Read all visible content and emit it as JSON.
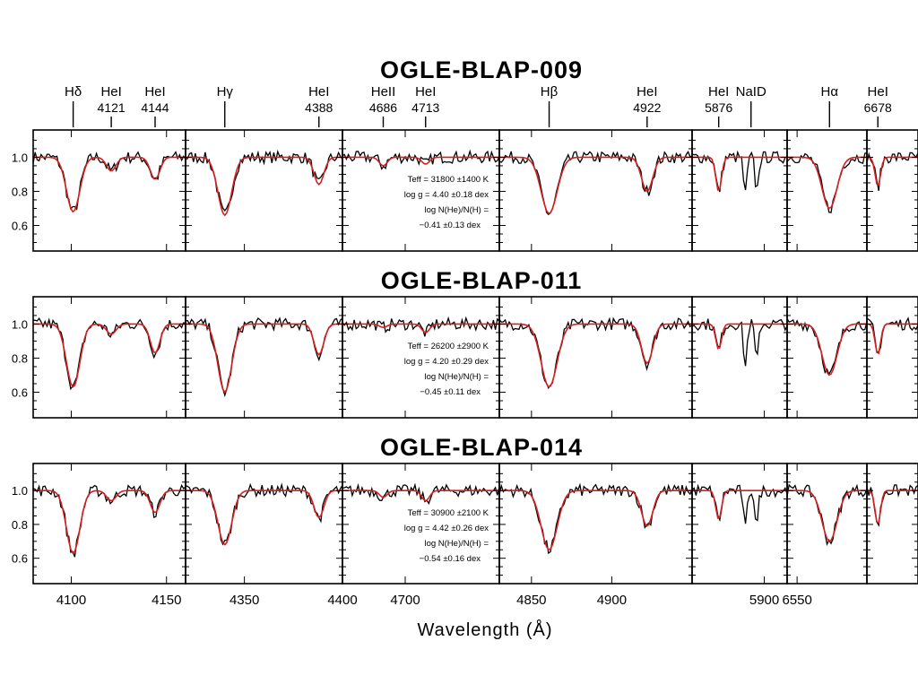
{
  "chart_data": {
    "type": "line",
    "xlabel": "Wavelength (Å)",
    "ylim": [
      0.45,
      1.16
    ],
    "y_ticks": [
      0.6,
      0.8,
      1.0
    ],
    "y_tick_labels": [
      "0.6",
      "0.8",
      "1.0"
    ],
    "colors": {
      "observed": "#000000",
      "model": "#d42020"
    },
    "windows": [
      {
        "range": [
          4080,
          4160
        ],
        "ticks": [
          4100,
          4150
        ],
        "tick_labels": [
          "4100",
          "4150"
        ]
      },
      {
        "range": [
          4320,
          4400
        ],
        "ticks": [
          4350,
          4400
        ],
        "tick_labels": [
          "4350",
          "4400"
        ]
      },
      {
        "range": [
          4660,
          4760
        ],
        "ticks": [
          4700
        ],
        "tick_labels": [
          "4700"
        ]
      },
      {
        "range": [
          4830,
          4950
        ],
        "ticks": [
          4850,
          4900
        ],
        "tick_labels": [
          "4850",
          "4900"
        ]
      },
      {
        "range": [
          5862,
          5912
        ],
        "ticks": [
          5900
        ],
        "tick_labels": [
          "5900"
        ]
      },
      {
        "range": [
          6546,
          6578
        ],
        "ticks": [
          6550
        ],
        "tick_labels": [
          "6550"
        ]
      },
      {
        "range": [
          6672,
          6700
        ],
        "ticks": [],
        "tick_labels": []
      }
    ],
    "lines": [
      {
        "label": "Hδ",
        "wave": "",
        "x": 4101,
        "win": 0
      },
      {
        "label": "HeI",
        "wave": "4121",
        "x": 4121,
        "win": 0
      },
      {
        "label": "HeI",
        "wave": "4144",
        "x": 4144,
        "win": 0
      },
      {
        "label": "Hγ",
        "wave": "",
        "x": 4340,
        "win": 1
      },
      {
        "label": "HeI",
        "wave": "4388",
        "x": 4388,
        "win": 1
      },
      {
        "label": "HeII",
        "wave": "4686",
        "x": 4686,
        "win": 2
      },
      {
        "label": "HeI",
        "wave": "4713",
        "x": 4713,
        "win": 2
      },
      {
        "label": "Hβ",
        "wave": "",
        "x": 4861,
        "win": 3
      },
      {
        "label": "HeI",
        "wave": "4922",
        "x": 4922,
        "win": 3
      },
      {
        "label": "HeI",
        "wave": "5876",
        "x": 5876,
        "win": 4
      },
      {
        "label": "NaID",
        "wave": "",
        "x": 5893,
        "win": 4
      },
      {
        "label": "Hα",
        "wave": "",
        "x": 6563,
        "win": 5
      },
      {
        "label": "HeI",
        "wave": "6678",
        "x": 6678,
        "win": 6
      }
    ],
    "stars": [
      {
        "name": "OGLE-BLAP-009",
        "params": [
          "Teff = 31800 ±1400 K",
          "log g = 4.40 ±0.18 dex",
          "log N(He)/N(H) =",
          "−0.41 ±0.13 dex"
        ],
        "depths": {
          "4101": 0.32,
          "4121": 0.08,
          "4144": 0.13,
          "4340": 0.34,
          "4388": 0.16,
          "4686": 0.05,
          "4713": 0.04,
          "4861": 0.33,
          "4922": 0.2,
          "5876": 0.2,
          "6563": 0.3,
          "6678": 0.17
        },
        "nad": 0.22
      },
      {
        "name": "OGLE-BLAP-011",
        "params": [
          "Teff = 26200 ±2900 K",
          "log g = 4.20 ±0.29 dex",
          "log N(He)/N(H) =",
          "−0.45 ±0.11 dex"
        ],
        "depths": {
          "4101": 0.37,
          "4121": 0.06,
          "4144": 0.17,
          "4340": 0.4,
          "4388": 0.18,
          "4686": 0.02,
          "4713": 0.05,
          "4861": 0.37,
          "4922": 0.23,
          "5876": 0.15,
          "6563": 0.3,
          "6678": 0.18
        },
        "nad": 0.25
      },
      {
        "name": "OGLE-BLAP-014",
        "params": [
          "Teff = 30900 ±2100 K",
          "log g = 4.42 ±0.26 dex",
          "log N(He)/N(H) =",
          "−0.54 ±0.16 dex"
        ],
        "depths": {
          "4101": 0.37,
          "4121": 0.06,
          "4144": 0.13,
          "4340": 0.32,
          "4388": 0.16,
          "4686": 0.04,
          "4713": 0.06,
          "4861": 0.35,
          "4922": 0.21,
          "5876": 0.17,
          "6563": 0.3,
          "6678": 0.2
        },
        "nad": 0.23
      }
    ]
  }
}
